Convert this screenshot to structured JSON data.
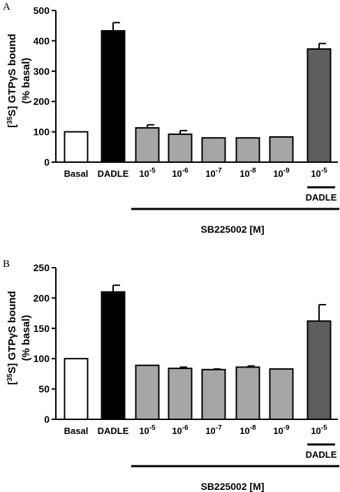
{
  "chart_data": [
    {
      "type": "bar",
      "panel_label": "A",
      "ylabel_lines": [
        "[35S] GTPγS bound",
        "(% basal)"
      ],
      "ylim": [
        0,
        500
      ],
      "yticks": [
        "0",
        "100",
        "200",
        "300",
        "400",
        "500"
      ],
      "categories": [
        {
          "label": "Basal",
          "base": "",
          "exp": ""
        },
        {
          "label": "DADLE",
          "base": "",
          "exp": ""
        },
        {
          "label": "",
          "base": "10",
          "exp": "-5"
        },
        {
          "label": "",
          "base": "10",
          "exp": "-6"
        },
        {
          "label": "",
          "base": "10",
          "exp": "-7"
        },
        {
          "label": "",
          "base": "10",
          "exp": "-8"
        },
        {
          "label": "",
          "base": "10",
          "exp": "-9"
        },
        {
          "label": "",
          "base": "10",
          "exp": "-5"
        }
      ],
      "values": [
        100,
        433,
        113,
        92,
        80,
        80,
        83,
        373
      ],
      "errors": [
        0,
        27,
        10,
        12,
        0,
        0,
        0,
        18
      ],
      "bar_colors": [
        "#ffffff",
        "#000000",
        "#a6a6a6",
        "#a6a6a6",
        "#a6a6a6",
        "#a6a6a6",
        "#a6a6a6",
        "#5e5e5e"
      ],
      "dadle_label": "DADLE",
      "group_label": "SB225002 [M]"
    },
    {
      "type": "bar",
      "panel_label": "B",
      "ylabel_lines": [
        "[35S] GTPγS bound",
        "(% basal)"
      ],
      "ylim": [
        0,
        250
      ],
      "yticks": [
        "0",
        "50",
        "100",
        "150",
        "200",
        "250"
      ],
      "categories": [
        {
          "label": "Basal",
          "base": "",
          "exp": ""
        },
        {
          "label": "DADLE",
          "base": "",
          "exp": ""
        },
        {
          "label": "",
          "base": "10",
          "exp": "-5"
        },
        {
          "label": "",
          "base": "10",
          "exp": "-6"
        },
        {
          "label": "",
          "base": "10",
          "exp": "-7"
        },
        {
          "label": "",
          "base": "10",
          "exp": "-8"
        },
        {
          "label": "",
          "base": "10",
          "exp": "-9"
        },
        {
          "label": "",
          "base": "10",
          "exp": "-5"
        }
      ],
      "values": [
        100,
        210,
        89,
        84,
        82,
        86,
        83,
        162
      ],
      "errors": [
        0,
        11,
        0,
        2,
        1,
        2,
        0,
        27
      ],
      "bar_colors": [
        "#ffffff",
        "#000000",
        "#a6a6a6",
        "#a6a6a6",
        "#a6a6a6",
        "#a6a6a6",
        "#a6a6a6",
        "#5e5e5e"
      ],
      "dadle_label": "DADLE",
      "group_label": "SB225002 [M]"
    }
  ]
}
